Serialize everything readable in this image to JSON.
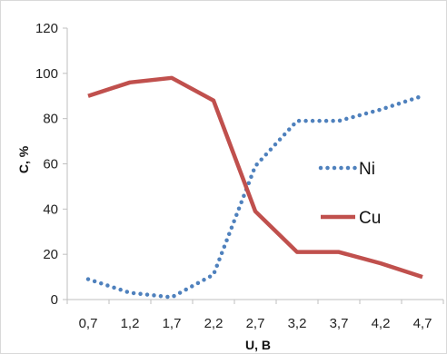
{
  "chart_data": {
    "type": "line",
    "title": "",
    "xlabel": "U, B",
    "ylabel": "C, %",
    "categories": [
      "0,7",
      "1,2",
      "1,7",
      "2,2",
      "2,7",
      "3,2",
      "3,7",
      "4,2",
      "4,7"
    ],
    "ylim": [
      0,
      120
    ],
    "yticks": [
      0,
      20,
      40,
      60,
      80,
      100,
      120
    ],
    "grid": false,
    "legend_position": "right",
    "series": [
      {
        "name": "Ni",
        "color": "#4f81bd",
        "style": "dotted",
        "values": [
          9,
          3,
          1,
          11,
          59,
          79,
          79,
          84,
          90
        ]
      },
      {
        "name": "Cu",
        "color": "#c0504d",
        "style": "solid",
        "values": [
          90,
          96,
          98,
          88,
          39,
          21,
          21,
          16,
          10
        ]
      }
    ]
  }
}
